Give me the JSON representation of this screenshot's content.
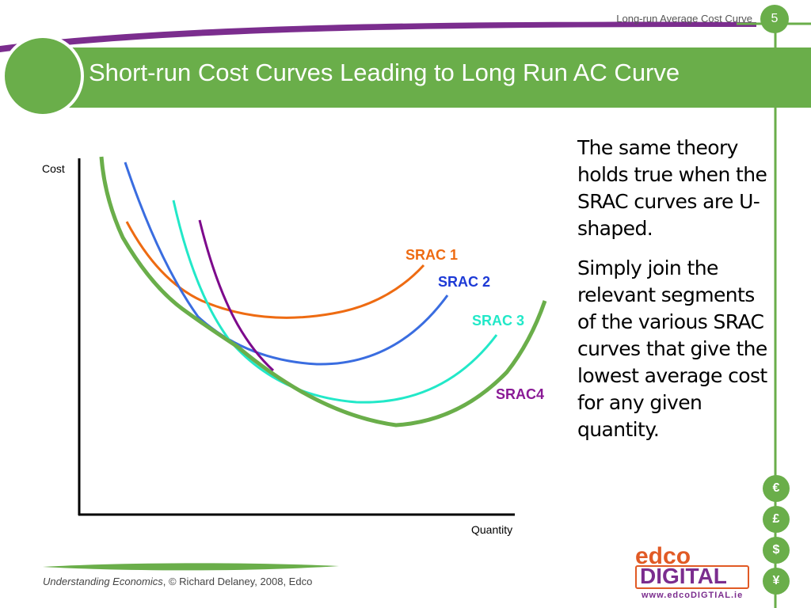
{
  "header": {
    "caption": "Long-run Average Cost Curve",
    "slide_number": "5"
  },
  "title": "Short-run Cost Curves Leading to Long Run AC Curve",
  "body": {
    "paragraph1": "The same theory holds true when the SRAC curves are U-shaped.",
    "paragraph2": "Simply join the relevant segments of the various SRAC curves that give the lowest average cost for any given quantity."
  },
  "diagram": {
    "y_axis_label": "Cost",
    "x_axis_label": "Quantity",
    "curves": [
      {
        "label": "SRAC 1",
        "color": "#ee6b12"
      },
      {
        "label": "SRAC 2",
        "color": "#3a6de0"
      },
      {
        "label": "SRAC 3",
        "color": "#22e8c8"
      },
      {
        "label": "SRAC4",
        "color": "#7d0a8c"
      }
    ],
    "envelope": {
      "color": "#6aae4a"
    },
    "label_colors": {
      "SRAC 1": "#ee6b12",
      "SRAC 2": "#1d3ad6",
      "SRAC 3": "#22e8c8",
      "SRAC4": "#8a1a96"
    }
  },
  "currency_icons": [
    "€",
    "£",
    "$",
    "¥"
  ],
  "footer": {
    "book": "Understanding Economics",
    "credit": ", © Richard Delaney, 2008, Edco"
  },
  "logo": {
    "top": "edco",
    "bottom": "DIGITAL",
    "url": "www.edcoDIGTIAL.ie"
  },
  "theme": {
    "accent_green": "#6aae4a",
    "purple": "#7b2d8e"
  }
}
